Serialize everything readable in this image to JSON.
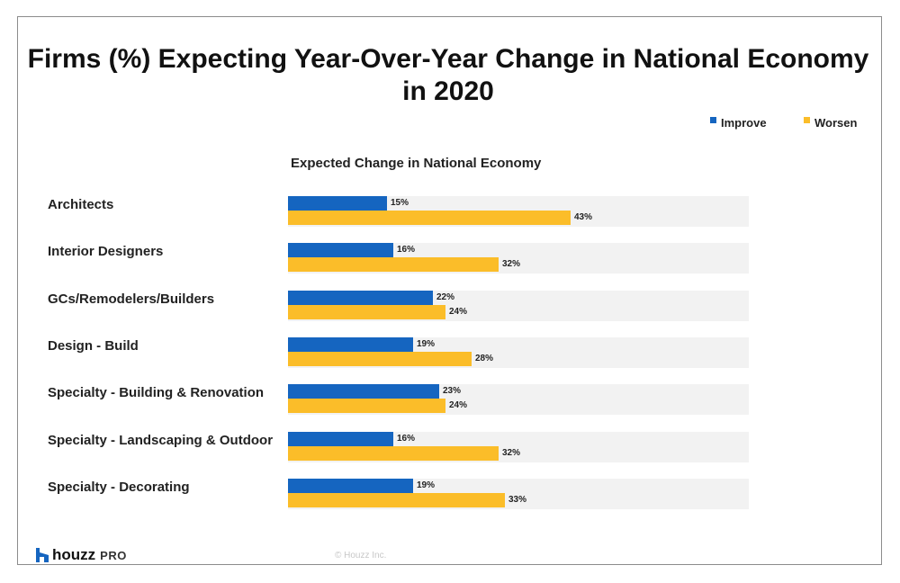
{
  "colors": {
    "improve": "#1565c0",
    "worsen": "#fbbd29",
    "track": "#f2f2f2"
  },
  "footer": {
    "logo_text": "houzz",
    "logo_suffix": "PRO",
    "copyright": "© Houzz Inc."
  },
  "chart_data": {
    "type": "bar",
    "orientation": "horizontal",
    "title": "Firms (%) Expecting Year-Over-Year Change in National Economy in 2020",
    "subtitle": "Expected Change in National Economy",
    "categories": [
      "Architects",
      "Interior Designers",
      "GCs/Remodelers/Builders",
      "Design - Build",
      "Specialty - Building & Renovation",
      "Specialty - Landscaping & Outdoor",
      "Specialty - Decorating"
    ],
    "series": [
      {
        "name": "Improve",
        "values": [
          15,
          16,
          22,
          19,
          23,
          16,
          19
        ],
        "labels": [
          "15%",
          "16%",
          "22%",
          "19%",
          "23%",
          "16%",
          "19%"
        ]
      },
      {
        "name": "Worsen",
        "values": [
          43,
          32,
          24,
          28,
          24,
          32,
          33
        ],
        "labels": [
          "43%",
          "32%",
          "24%",
          "28%",
          "24%",
          "32%",
          "33%"
        ]
      }
    ],
    "xlim": [
      0,
      70
    ],
    "grid": false,
    "legend": "top-right"
  }
}
